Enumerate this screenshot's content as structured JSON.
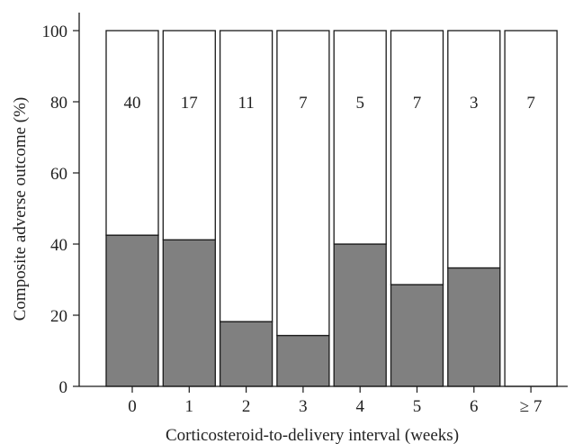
{
  "chart_data": {
    "type": "bar",
    "stacked": true,
    "categories": [
      "0",
      "1",
      "2",
      "3",
      "4",
      "5",
      "6",
      "≥ 7"
    ],
    "series": [
      {
        "values": [
          42.5,
          41.2,
          18.2,
          14.3,
          40.0,
          28.6,
          33.3,
          0
        ]
      },
      {
        "values": [
          57.5,
          58.8,
          81.8,
          85.7,
          60.0,
          71.4,
          66.7,
          100
        ]
      }
    ],
    "bar_labels": [
      "40",
      "17",
      "11",
      "7",
      "5",
      "7",
      "3",
      "7"
    ],
    "xlabel": "Corticosteroid-to-delivery interval (weeks)",
    "ylabel": "Composite adverse outcome (%)",
    "ylim": [
      0,
      100
    ],
    "yticks": [
      "0",
      "20",
      "40",
      "60",
      "80",
      "100"
    ],
    "grid": false,
    "colors": {
      "adverse": "#808080",
      "remainder": "#ffffff",
      "outline": "#1a1a1a"
    }
  }
}
